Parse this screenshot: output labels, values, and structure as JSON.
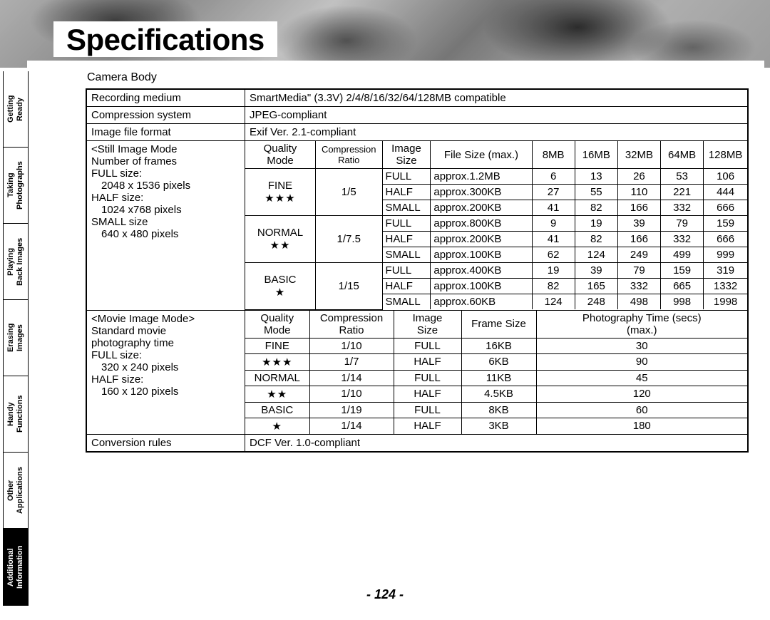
{
  "page_title": "Specifications",
  "page_number": "- 124 -",
  "subtitle": "Camera Body",
  "side_tabs": [
    {
      "label": "Getting\nReady",
      "active": false
    },
    {
      "label": "Taking\nPhotographs",
      "active": false
    },
    {
      "label": "Playing\nBack Images",
      "active": false
    },
    {
      "label": "Erasing\nImages",
      "active": false
    },
    {
      "label": "Handy\nFunctions",
      "active": false
    },
    {
      "label": "Other\nApplications",
      "active": false
    },
    {
      "label": "Additional\nInformation",
      "active": true
    }
  ],
  "simple_rows_top": [
    {
      "label": "Recording medium",
      "value": "SmartMedia\" (3.3V) 2/4/8/16/32/64/128MB compatible"
    },
    {
      "label": "Compression system",
      "value": "JPEG-compliant"
    },
    {
      "label": "Image file format",
      "value": "Exif Ver. 2.1-compliant"
    }
  ],
  "still": {
    "side_title": "<Still Image Mode",
    "side_lines": [
      "Number of frames",
      "FULL size:",
      "  2048 x 1536 pixels",
      "HALF size:",
      "  1024 x768 pixels",
      "SMALL size",
      "   640 x 480 pixels"
    ],
    "head": {
      "quality": "Quality\nMode",
      "ratio": "Compression\nRatio",
      "size": "Image\nSize",
      "filesize": "File Size (max.)",
      "caps": [
        "8MB",
        "16MB",
        "32MB",
        "64MB",
        "128MB"
      ]
    },
    "groups": [
      {
        "quality": "FINE",
        "stars": "★★★",
        "ratio": "1/5",
        "rows": [
          {
            "size": "FULL",
            "fs": "approx.1.2MB",
            "v": [
              "6",
              "13",
              "26",
              "53",
              "106"
            ]
          },
          {
            "size": "HALF",
            "fs": "approx.300KB",
            "v": [
              "27",
              "55",
              "110",
              "221",
              "444"
            ]
          },
          {
            "size": "SMALL",
            "fs": "approx.200KB",
            "v": [
              "41",
              "82",
              "166",
              "332",
              "666"
            ]
          }
        ]
      },
      {
        "quality": "NORMAL",
        "stars": "★★",
        "ratio": "1/7.5",
        "rows": [
          {
            "size": "FULL",
            "fs": "approx.800KB",
            "v": [
              "9",
              "19",
              "39",
              "79",
              "159"
            ]
          },
          {
            "size": "HALF",
            "fs": "approx.200KB",
            "v": [
              "41",
              "82",
              "166",
              "332",
              "666"
            ]
          },
          {
            "size": "SMALL",
            "fs": "approx.100KB",
            "v": [
              "62",
              "124",
              "249",
              "499",
              "999"
            ]
          }
        ]
      },
      {
        "quality": "BASIC",
        "stars": "★",
        "ratio": "1/15",
        "rows": [
          {
            "size": "FULL",
            "fs": "approx.400KB",
            "v": [
              "19",
              "39",
              "79",
              "159",
              "319"
            ]
          },
          {
            "size": "HALF",
            "fs": "approx.100KB",
            "v": [
              "82",
              "165",
              "332",
              "665",
              "1332"
            ]
          },
          {
            "size": "SMALL",
            "fs": "approx.60KB",
            "v": [
              "124",
              "248",
              "498",
              "998",
              "1998"
            ]
          }
        ]
      }
    ]
  },
  "movie": {
    "side_title": "<Movie Image Mode>",
    "side_lines": [
      "Standard movie",
      "photography time",
      "FULL size:",
      "   320 x 240 pixels",
      "HALF size:",
      "   160 x 120 pixels"
    ],
    "head": {
      "quality": "Quality\nMode",
      "ratio": "Compression\nRatio",
      "size": "Image\nSize",
      "frame": "Frame Size",
      "time": "Photography Time (secs)\n(max.)"
    },
    "groups": [
      {
        "quality": "FINE",
        "stars": "★★★",
        "rows": [
          {
            "ratio": "1/10",
            "size": "FULL",
            "frame": "16KB",
            "time": "30"
          },
          {
            "ratio": "1/7",
            "size": "HALF",
            "frame": "6KB",
            "time": "90"
          }
        ]
      },
      {
        "quality": "NORMAL",
        "stars": "★★",
        "rows": [
          {
            "ratio": "1/14",
            "size": "FULL",
            "frame": "11KB",
            "time": "45"
          },
          {
            "ratio": "1/10",
            "size": "HALF",
            "frame": "4.5KB",
            "time": "120"
          }
        ]
      },
      {
        "quality": "BASIC",
        "stars": "★",
        "rows": [
          {
            "ratio": "1/19",
            "size": "FULL",
            "frame": "8KB",
            "time": "60"
          },
          {
            "ratio": "1/14",
            "size": "HALF",
            "frame": "3KB",
            "time": "180"
          }
        ]
      }
    ]
  },
  "simple_rows_bottom": [
    {
      "label": "Conversion rules",
      "value": "DCF Ver. 1.0-compliant"
    }
  ]
}
